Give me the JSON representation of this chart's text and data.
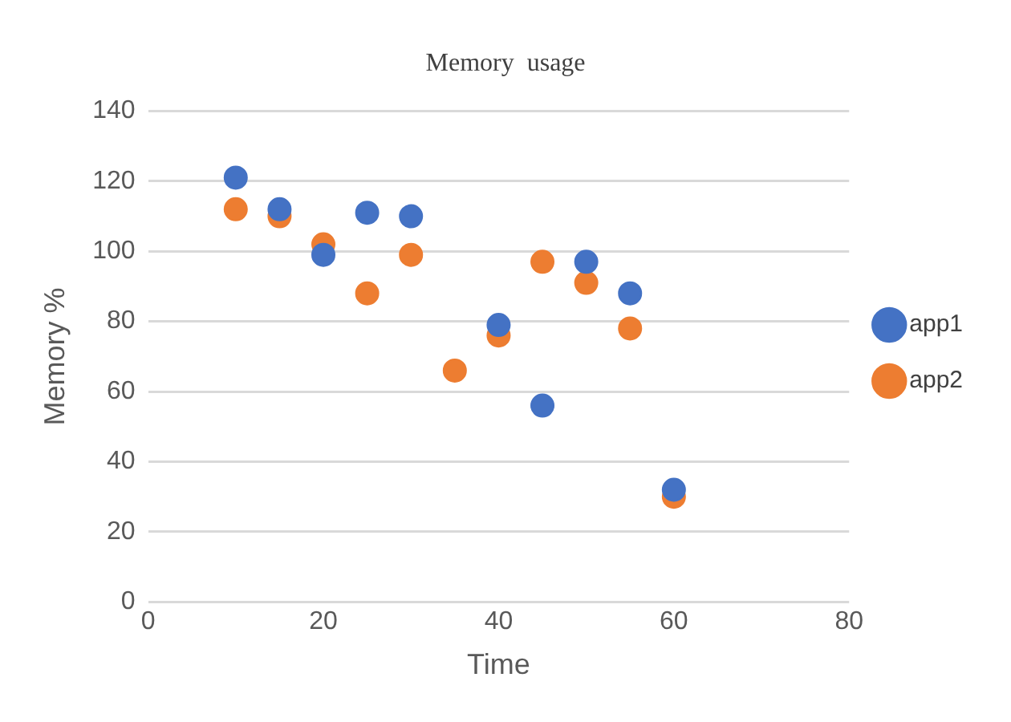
{
  "chart_data": {
    "type": "scatter",
    "title": "Memory  usage",
    "xlabel": "Time",
    "ylabel": "Memory %",
    "x": [
      10,
      15,
      20,
      25,
      30,
      35,
      40,
      45,
      50,
      55,
      60
    ],
    "series": [
      {
        "name": "app1",
        "color": "#4472c4",
        "values": [
          121,
          112,
          99,
          111,
          110,
          null,
          79,
          56,
          97,
          88,
          32
        ]
      },
      {
        "name": "app2",
        "color": "#ed7d31",
        "values": [
          112,
          110,
          102,
          88,
          99,
          66,
          76,
          97,
          91,
          78,
          30
        ]
      }
    ],
    "xlim": [
      0,
      80
    ],
    "xticks": [
      0,
      20,
      40,
      60,
      80
    ],
    "ylim": [
      0,
      140
    ],
    "yticks": [
      0,
      20,
      40,
      60,
      80,
      100,
      120,
      140
    ],
    "grid": "y",
    "legend": "right",
    "marker": "circle"
  }
}
